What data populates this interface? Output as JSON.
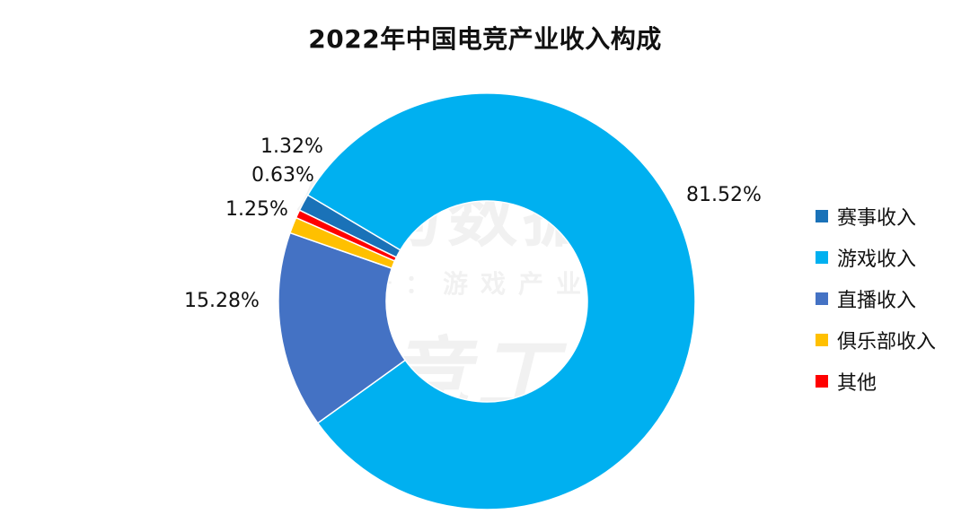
{
  "chart_data": {
    "type": "pie",
    "variant": "donut",
    "title": "2022年中国电竞产业收入构成",
    "categories": [
      "赛事收入",
      "游戏收入",
      "直播收入",
      "俱乐部收入",
      "其他"
    ],
    "values": [
      1.32,
      81.52,
      15.28,
      1.25,
      0.63
    ],
    "value_labels": [
      "1.32%",
      "81.52%",
      "15.28%",
      "1.25%",
      "0.63%"
    ],
    "colors": [
      "#1a72b8",
      "#00b0f0",
      "#4472c4",
      "#ffc000",
      "#ff0000"
    ],
    "legend_position": "right",
    "start_angle_deg_clockwise_from_top": -64
  },
  "watermark": {
    "line1": "伽马数据",
    "line2": "微信号：游戏产业报告",
    "line3": "电竞工委"
  }
}
